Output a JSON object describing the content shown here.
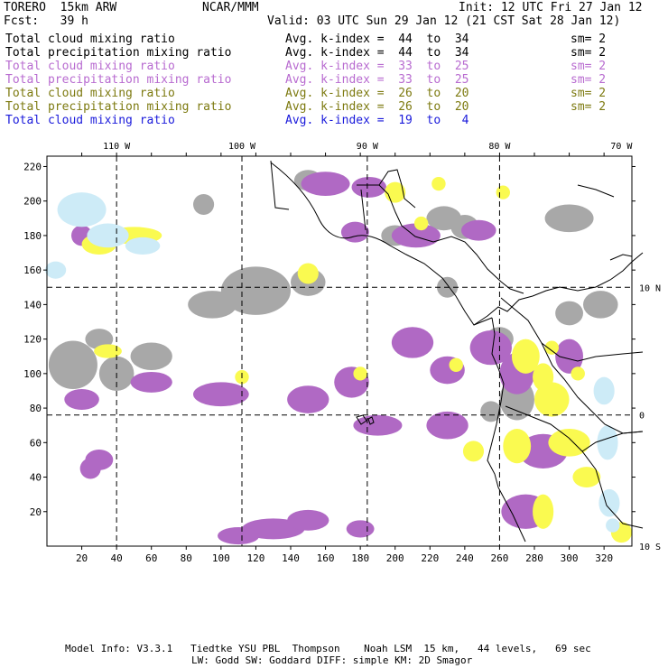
{
  "header": {
    "model": "TORERO  15km ARW",
    "org": "NCAR/MMM",
    "init": "Init: 12 UTC Fri 27 Jan 12",
    "fcst": "Fcst:   39 h",
    "valid": "Valid: 03 UTC Sun 29 Jan 12 (21 CST Sat 28 Jan 12)"
  },
  "fields": [
    {
      "name": "Total cloud mixing ratio",
      "kindex": "Avg. k-index =  44  to  34",
      "sm": "sm= 2",
      "color": "#000000"
    },
    {
      "name": "Total precipitation mixing ratio",
      "kindex": "Avg. k-index =  44  to  34",
      "sm": "sm= 2",
      "color": "#000000"
    },
    {
      "name": "Total cloud mixing ratio",
      "kindex": "Avg. k-index =  33  to  25",
      "sm": "sm= 2",
      "color": "#b86bd0"
    },
    {
      "name": "Total precipitation mixing ratio",
      "kindex": "Avg. k-index =  33  to  25",
      "sm": "sm= 2",
      "color": "#b86bd0"
    },
    {
      "name": "Total cloud mixing ratio",
      "kindex": "Avg. k-index =  26  to  20",
      "sm": "sm= 2",
      "color": "#7d7a10"
    },
    {
      "name": "Total precipitation mixing ratio",
      "kindex": "Avg. k-index =  26  to  20",
      "sm": "sm= 2",
      "color": "#7d7a10"
    },
    {
      "name": "Total cloud mixing ratio",
      "kindex": "Avg. k-index =  19  to   4",
      "sm": "",
      "color": "#1a1adb"
    }
  ],
  "footer": {
    "line1": "Model Info: V3.3.1   Tiedtke YSU PBL  Thompson    Noah LSM  15 km,   44 levels,   69 sec",
    "line2": "LW: Godd SW: Goddard DIFF: simple KM: 2D Smagor"
  },
  "colors": {
    "gray": "#a8a8a8",
    "purple": "#b069c4",
    "yellow": "#fafa50",
    "lightblue": "#cdebf7"
  },
  "chart_data": {
    "type": "map",
    "x_ticks": [
      20,
      40,
      60,
      80,
      100,
      120,
      140,
      160,
      180,
      200,
      220,
      240,
      260,
      280,
      300,
      320
    ],
    "y_ticks": [
      20,
      40,
      60,
      80,
      100,
      120,
      140,
      160,
      180,
      200,
      220
    ],
    "xlim": [
      0,
      336
    ],
    "ylim": [
      0,
      226
    ],
    "longitude_labels": [
      {
        "label": "110 W",
        "x": 40
      },
      {
        "label": "100 W",
        "x": 112
      },
      {
        "label": "90 W",
        "x": 184
      },
      {
        "label": "80 W",
        "x": 260
      },
      {
        "label": "70 W",
        "x": 330
      }
    ],
    "latitude_labels": [
      {
        "label": "10 N",
        "y": 150
      },
      {
        "label": "0",
        "y": 76
      },
      {
        "label": "10 S",
        "y": 0
      }
    ],
    "meridians_x": [
      40,
      112,
      184,
      260
    ],
    "parallels_y": [
      150,
      76
    ],
    "layers": [
      {
        "color": "gray",
        "blobs": [
          [
            15,
            105,
            14,
            14
          ],
          [
            40,
            100,
            10,
            10
          ],
          [
            30,
            120,
            8,
            6
          ],
          [
            120,
            148,
            20,
            14
          ],
          [
            95,
            140,
            14,
            8
          ],
          [
            150,
            153,
            10,
            8
          ],
          [
            228,
            190,
            10,
            7
          ],
          [
            240,
            185,
            8,
            7
          ],
          [
            300,
            190,
            14,
            8
          ],
          [
            318,
            140,
            10,
            8
          ],
          [
            300,
            135,
            8,
            7
          ],
          [
            260,
            120,
            8,
            7
          ],
          [
            270,
            85,
            10,
            12
          ],
          [
            255,
            78,
            6,
            6
          ],
          [
            290,
            55,
            8,
            6
          ],
          [
            60,
            110,
            12,
            8
          ],
          [
            230,
            150,
            6,
            6
          ],
          [
            200,
            180,
            8,
            6
          ],
          [
            150,
            212,
            8,
            6
          ],
          [
            90,
            198,
            6,
            6
          ]
        ]
      },
      {
        "color": "purple",
        "blobs": [
          [
            160,
            210,
            14,
            7
          ],
          [
            185,
            208,
            10,
            6
          ],
          [
            212,
            180,
            14,
            7
          ],
          [
            248,
            183,
            10,
            6
          ],
          [
            177,
            182,
            8,
            6
          ],
          [
            100,
            88,
            16,
            7
          ],
          [
            150,
            85,
            12,
            8
          ],
          [
            175,
            95,
            10,
            9
          ],
          [
            210,
            118,
            12,
            9
          ],
          [
            255,
            115,
            12,
            10
          ],
          [
            270,
            100,
            10,
            12
          ],
          [
            190,
            70,
            14,
            6
          ],
          [
            230,
            70,
            12,
            8
          ],
          [
            285,
            55,
            14,
            10
          ],
          [
            275,
            20,
            14,
            10
          ],
          [
            130,
            10,
            18,
            6
          ],
          [
            150,
            15,
            12,
            6
          ],
          [
            30,
            50,
            8,
            6
          ],
          [
            20,
            85,
            10,
            6
          ],
          [
            60,
            95,
            12,
            6
          ],
          [
            20,
            180,
            6,
            6
          ],
          [
            230,
            102,
            10,
            8
          ],
          [
            300,
            110,
            8,
            10
          ],
          [
            25,
            45,
            6,
            6
          ],
          [
            110,
            6,
            12,
            5
          ],
          [
            180,
            10,
            8,
            5
          ]
        ]
      },
      {
        "color": "yellow",
        "blobs": [
          [
            50,
            180,
            16,
            5
          ],
          [
            30,
            175,
            10,
            6
          ],
          [
            150,
            158,
            6,
            6
          ],
          [
            35,
            113,
            8,
            4
          ],
          [
            112,
            98,
            4,
            4
          ],
          [
            180,
            100,
            4,
            4
          ],
          [
            235,
            105,
            4,
            4
          ],
          [
            275,
            110,
            8,
            10
          ],
          [
            290,
            85,
            10,
            10
          ],
          [
            285,
            98,
            6,
            8
          ],
          [
            300,
            60,
            12,
            8
          ],
          [
            310,
            40,
            8,
            6
          ],
          [
            245,
            55,
            6,
            6
          ],
          [
            270,
            58,
            8,
            10
          ],
          [
            285,
            20,
            6,
            10
          ],
          [
            330,
            8,
            6,
            6
          ],
          [
            225,
            210,
            4,
            4
          ],
          [
            200,
            205,
            6,
            6
          ],
          [
            262,
            205,
            4,
            4
          ],
          [
            215,
            187,
            4,
            4
          ],
          [
            290,
            115,
            4,
            4
          ],
          [
            305,
            100,
            4,
            4
          ]
        ]
      },
      {
        "color": "lightblue",
        "blobs": [
          [
            20,
            195,
            14,
            10
          ],
          [
            35,
            180,
            12,
            7
          ],
          [
            55,
            174,
            10,
            5
          ],
          [
            5,
            160,
            6,
            5
          ],
          [
            320,
            90,
            6,
            8
          ],
          [
            322,
            60,
            6,
            10
          ],
          [
            323,
            25,
            6,
            8
          ],
          [
            325,
            12,
            4,
            4
          ]
        ]
      }
    ]
  }
}
